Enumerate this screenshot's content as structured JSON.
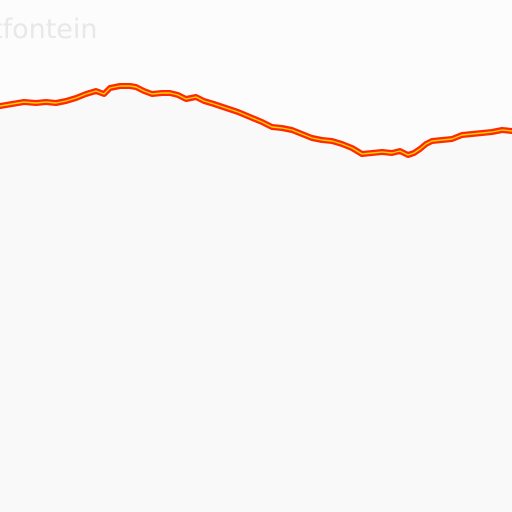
{
  "map": {
    "place_label": "tfontein",
    "colors": {
      "land_above": "#fcfcfc",
      "land_below": "#f9f9f9",
      "route_outer": "#ff2a00",
      "route_inner": "#ffd400",
      "label_text": "#e8e8e8"
    }
  }
}
